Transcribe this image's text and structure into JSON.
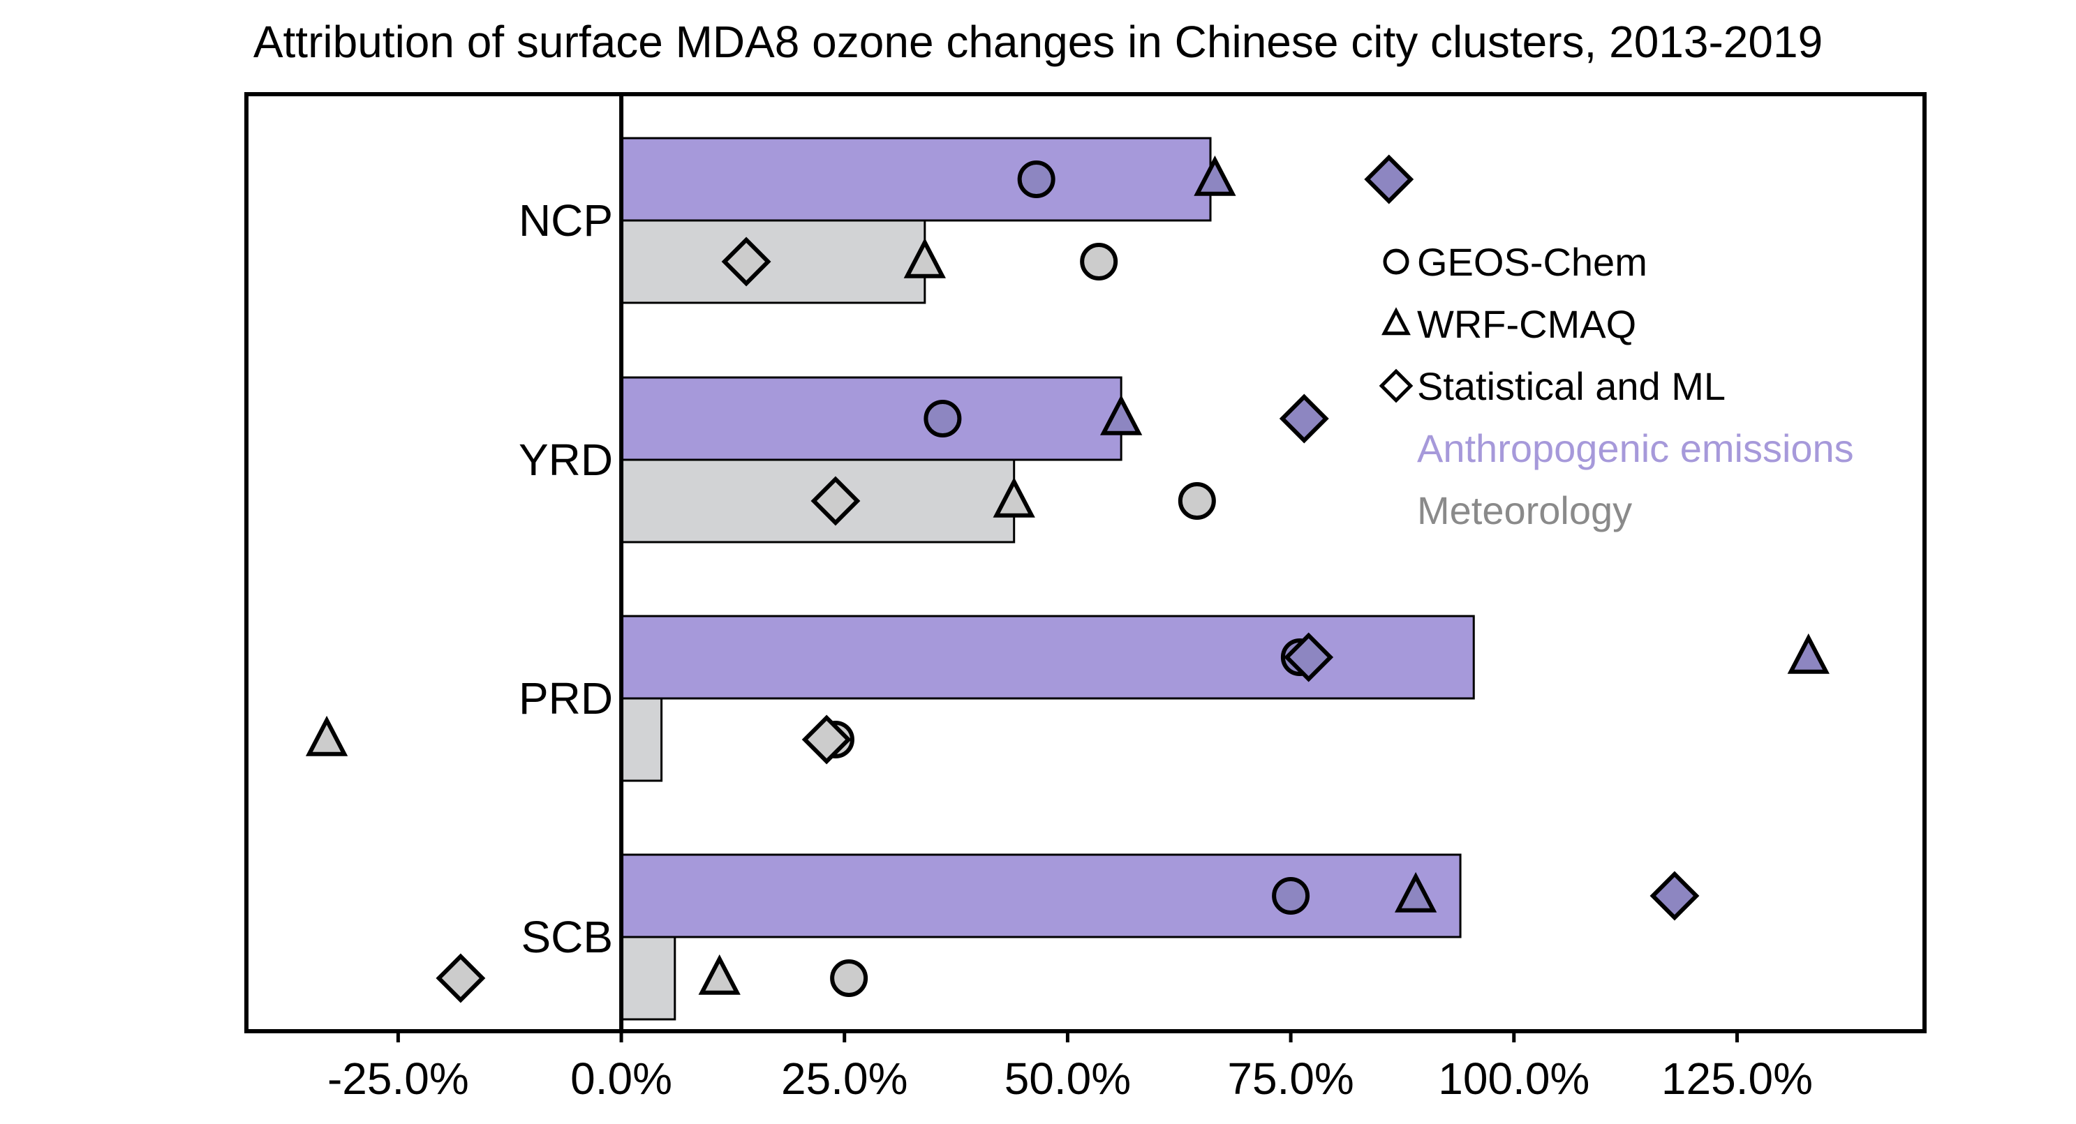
{
  "chart_data": {
    "type": "bar",
    "title": "Attribution of surface MDA8 ozone changes in Chinese city clusters, 2013-2019",
    "categories": [
      "NCP",
      "YRD",
      "PRD",
      "SCB"
    ],
    "series": [
      {
        "name": "Anthropogenic emissions",
        "values": [
          66,
          56,
          95.5,
          94
        ],
        "color": "#a699da"
      },
      {
        "name": "Meteorology",
        "values": [
          34,
          44,
          4.5,
          6
        ],
        "color": "#d2d3d5"
      }
    ],
    "markers": {
      "Anthropogenic emissions": {
        "GEOS-Chem": [
          46.5,
          36,
          76,
          75
        ],
        "WRF-CMAQ": [
          66.5,
          56,
          133,
          89
        ],
        "Statistical and ML": [
          86,
          76.5,
          77,
          118
        ]
      },
      "Meteorology": {
        "GEOS-Chem": [
          53.5,
          64.5,
          24,
          25.5
        ],
        "WRF-CMAQ": [
          34,
          44,
          -33,
          11
        ],
        "Statistical and ML": [
          14,
          24,
          23,
          -18
        ]
      }
    },
    "marker_colors": {
      "Anthropogenic emissions": "#8d86c1",
      "Meteorology": "#cccccc"
    },
    "legend": {
      "markers": [
        {
          "shape": "circle",
          "label": "GEOS-Chem"
        },
        {
          "shape": "triangle",
          "label": "WRF-CMAQ"
        },
        {
          "shape": "diamond",
          "label": "Statistical and ML"
        }
      ],
      "colors": [
        {
          "label": "Anthropogenic emissions",
          "color": "#a699da"
        },
        {
          "label": "Meteorology",
          "color": "#8a8a8a"
        }
      ],
      "position": "right"
    },
    "xticks": [
      -25,
      0,
      25,
      50,
      75,
      100,
      125
    ],
    "xtick_labels": [
      "-25.0%",
      "0.0%",
      "25.0%",
      "50.0%",
      "75.0%",
      "100.0%",
      "125.0%"
    ],
    "xlim": [
      -42,
      146
    ],
    "xlabel": "",
    "ylabel": "",
    "grid": false
  }
}
